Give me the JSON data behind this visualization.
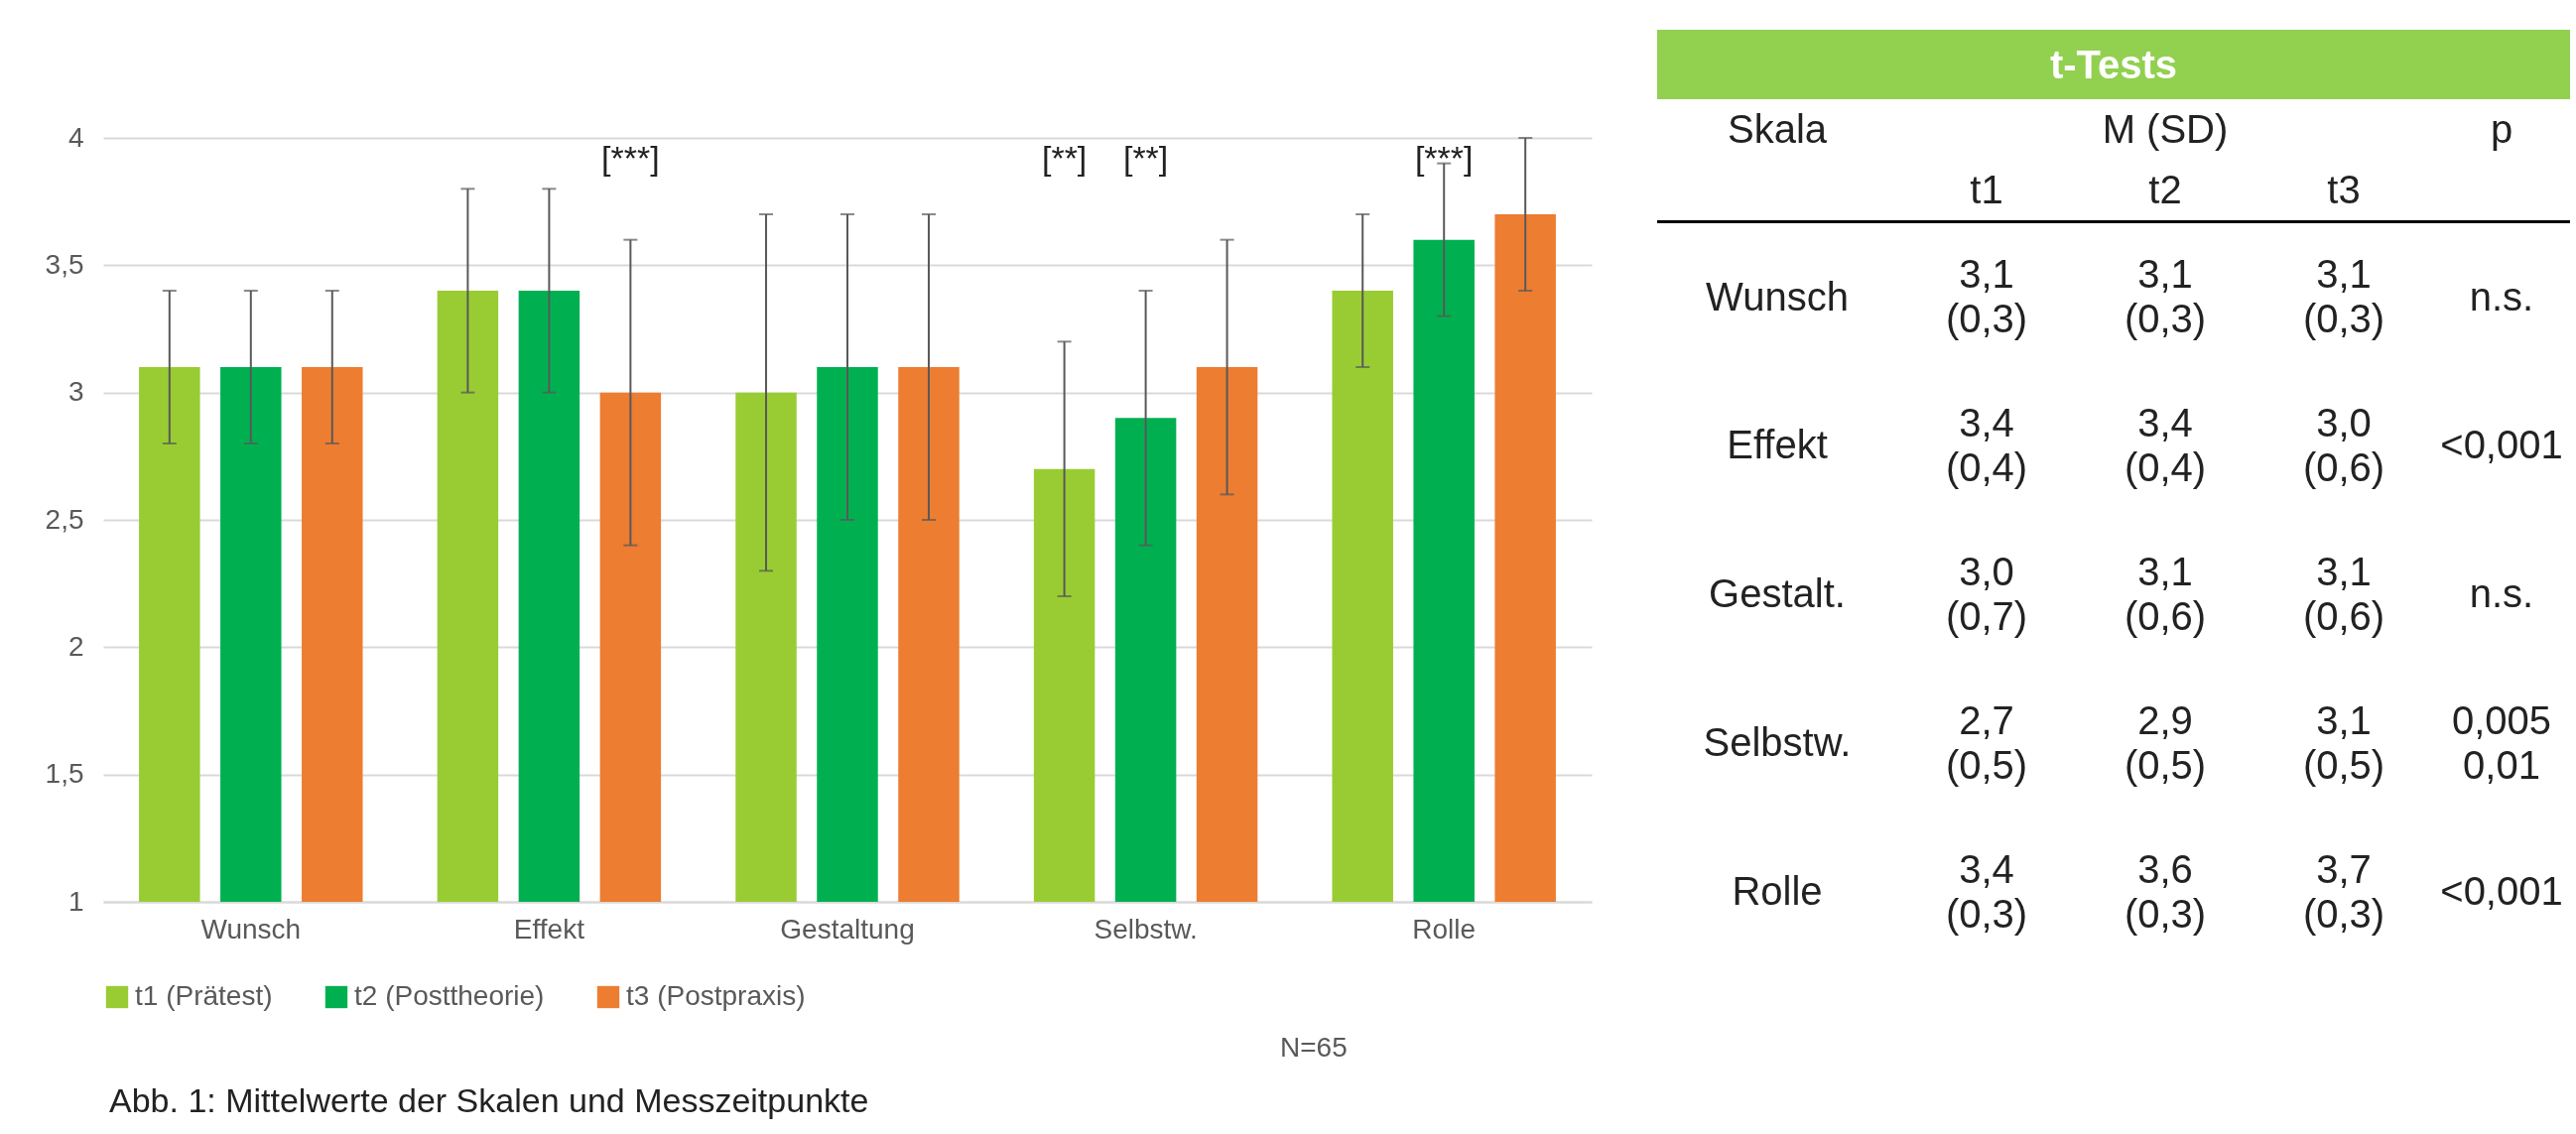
{
  "chart_data": [
    {
      "type": "bar",
      "categories": [
        "Wunsch",
        "Effekt",
        "Gestaltung",
        "Selbstw.",
        "Rolle"
      ],
      "series": [
        {
          "name": "t1 (Prätest)",
          "color": "#99cc33",
          "values": [
            3.1,
            3.4,
            3.0,
            2.7,
            3.4
          ],
          "errors": [
            0.3,
            0.4,
            0.7,
            0.5,
            0.3
          ]
        },
        {
          "name": "t2 (Posttheorie)",
          "color": "#00b050",
          "values": [
            3.1,
            3.4,
            3.1,
            2.9,
            3.6
          ],
          "errors": [
            0.3,
            0.4,
            0.6,
            0.5,
            0.3
          ]
        },
        {
          "name": "t3 (Postpraxis)",
          "color": "#ed7d31",
          "values": [
            3.1,
            3.0,
            3.1,
            3.1,
            3.7
          ],
          "errors": [
            0.3,
            0.6,
            0.6,
            0.5,
            0.3
          ]
        }
      ],
      "ylim": [
        1,
        4
      ],
      "yticks": [
        1,
        {
          "value": 1.5,
          "label": "1,5"
        },
        2,
        {
          "value": 2.5,
          "label": "2,5"
        },
        3,
        {
          "value": 3.5,
          "label": "3,5"
        },
        4
      ],
      "grid": "y",
      "legend": "bottom",
      "annotations": [
        "[***]",
        "[**]",
        "[**]",
        "[***]",
        "N=65",
        "Abb. 1: Mittelwerte der Skalen und Messzeitpunkte"
      ]
    },
    {
      "type": "other",
      "title": "t-Tests",
      "annotations": [
        "Skala",
        "M (SD)",
        "p",
        "t1",
        "t2",
        "t3",
        "Wunsch",
        "3,1 (0,3)",
        "3,1 (0,3)",
        "3,1 (0,3)",
        "n.s.",
        "Effekt",
        "3,4 (0,4)",
        "3,4 (0,4)",
        "3,0 (0,6)",
        "<0,001",
        "Gestalt.",
        "3,0 (0,7)",
        "3,1 (0,6)",
        "3,1 (0,6)",
        "n.s.",
        "Selbstw.",
        "2,7 (0,5)",
        "2,9 (0,5)",
        "3,1 (0,5)",
        "0,005 0,01",
        "Rolle",
        "3,4 (0,3)",
        "3,6 (0,3)",
        "3,7 (0,3)",
        "<0,001"
      ]
    }
  ]
}
